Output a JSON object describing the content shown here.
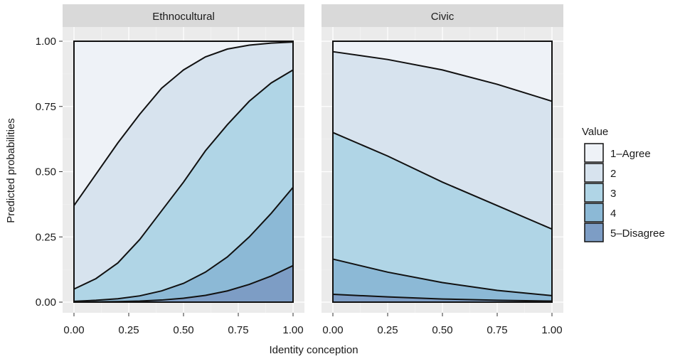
{
  "chart_data": {
    "type": "area",
    "title": "",
    "xlabel": "Identity conception",
    "ylabel": "Predicted probabilities",
    "xlim": [
      0,
      1
    ],
    "ylim": [
      0,
      1
    ],
    "x_ticks": [
      "0.00",
      "0.25",
      "0.50",
      "0.75",
      "1.00"
    ],
    "y_ticks": [
      "0.00",
      "0.25",
      "0.50",
      "0.75",
      "1.00"
    ],
    "grid": true,
    "stacked": "cumulative",
    "legend": {
      "title": "Value",
      "position": "right",
      "entries": [
        "1–Agree",
        "2",
        "3",
        "4",
        "5–Disagree"
      ],
      "colors": [
        "#eef2f7",
        "#d7e3ee",
        "#b0d5e6",
        "#8cb9d6",
        "#7d9dc5"
      ]
    },
    "panels": [
      {
        "label": "Ethnocultural",
        "x": [
          0,
          0.1,
          0.2,
          0.3,
          0.4,
          0.5,
          0.6,
          0.7,
          0.8,
          0.9,
          1.0
        ],
        "boundaries": [
          {
            "name": "5–Disagree",
            "values": [
              0.0,
              0.001,
              0.002,
              0.004,
              0.008,
              0.015,
              0.026,
              0.043,
              0.068,
              0.1,
              0.14
            ]
          },
          {
            "name": "4",
            "values": [
              0.003,
              0.007,
              0.013,
              0.024,
              0.043,
              0.072,
              0.115,
              0.173,
              0.25,
              0.34,
              0.44
            ]
          },
          {
            "name": "3",
            "values": [
              0.05,
              0.09,
              0.15,
              0.24,
              0.35,
              0.46,
              0.58,
              0.68,
              0.77,
              0.84,
              0.89
            ]
          },
          {
            "name": "2",
            "values": [
              0.37,
              0.49,
              0.61,
              0.72,
              0.82,
              0.89,
              0.94,
              0.97,
              0.985,
              0.993,
              0.997
            ]
          }
        ]
      },
      {
        "label": "Civic",
        "x": [
          0,
          0.25,
          0.5,
          0.75,
          1.0
        ],
        "boundaries": [
          {
            "name": "5–Disagree",
            "values": [
              0.03,
              0.02,
              0.012,
              0.007,
              0.004
            ]
          },
          {
            "name": "4",
            "values": [
              0.165,
              0.115,
              0.075,
              0.045,
              0.025
            ]
          },
          {
            "name": "3",
            "values": [
              0.65,
              0.56,
              0.46,
              0.37,
              0.28
            ]
          },
          {
            "name": "2",
            "values": [
              0.96,
              0.93,
              0.89,
              0.835,
              0.77
            ]
          }
        ]
      }
    ]
  }
}
